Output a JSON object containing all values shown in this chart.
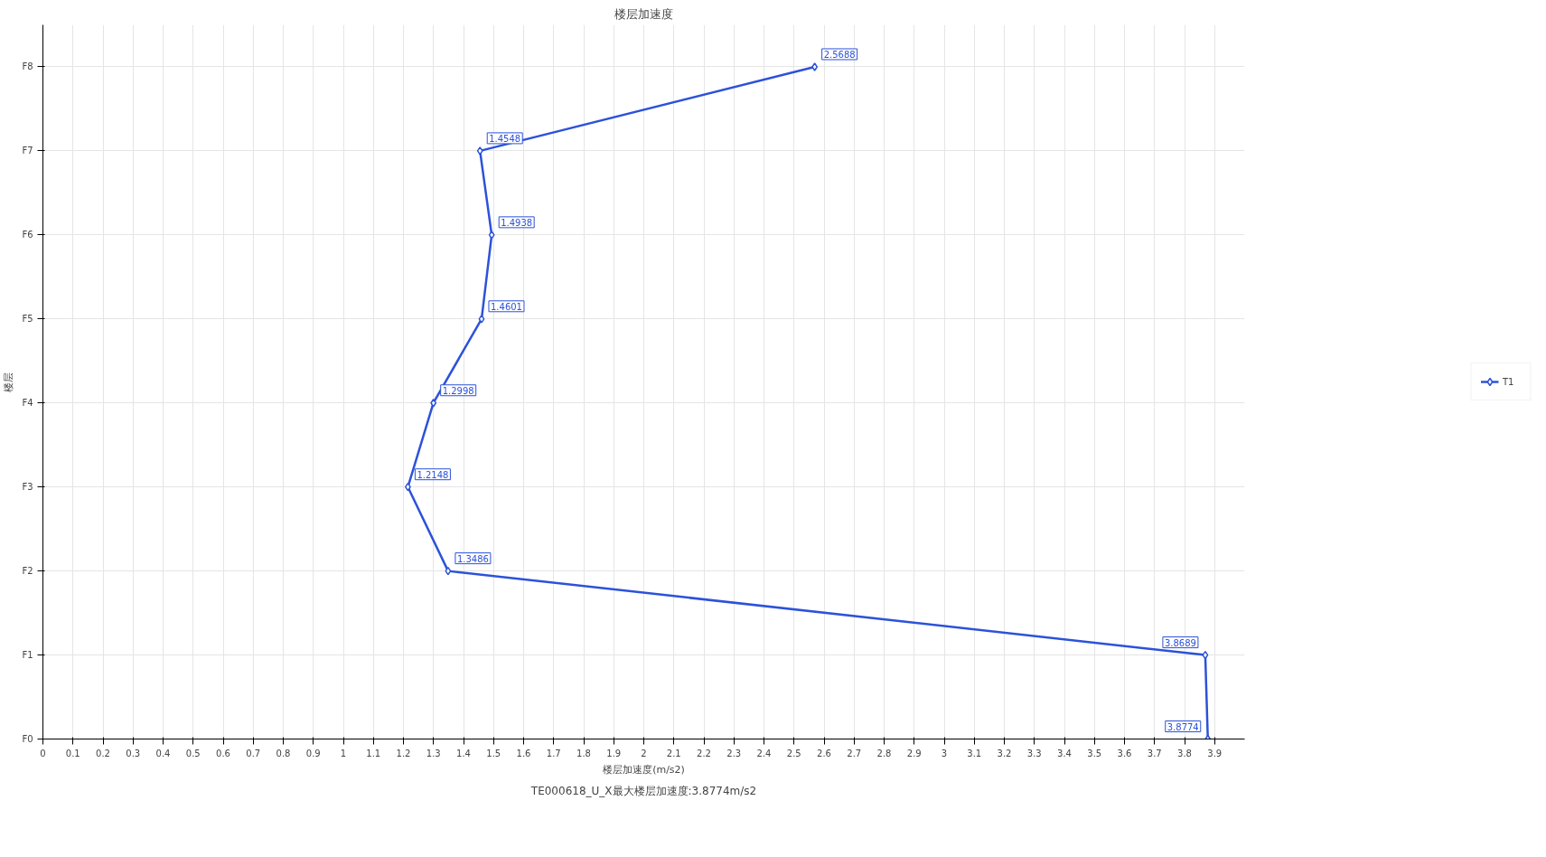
{
  "chart_data": {
    "type": "line",
    "orientation": "horizontal",
    "title": "楼层加速度",
    "xlabel": "楼层加速度(m/s2)",
    "ylabel": "楼层",
    "categories": [
      "F8",
      "F7",
      "F6",
      "F5",
      "F4",
      "F3",
      "F2",
      "F1",
      "F0"
    ],
    "series": [
      {
        "name": "T1",
        "color": "#2c52d9",
        "values": [
          2.5688,
          1.4548,
          1.4938,
          1.4601,
          1.2998,
          1.2148,
          1.3486,
          3.8689,
          3.8774
        ]
      }
    ],
    "xlim": [
      0,
      4
    ],
    "xticks": [
      0,
      0.1,
      0.2,
      0.3,
      0.4,
      0.5,
      0.6,
      0.7,
      0.8,
      0.9,
      1,
      1.1,
      1.2,
      1.3,
      1.4,
      1.5,
      1.6,
      1.7,
      1.8,
      1.9,
      2,
      2.1,
      2.2,
      2.3,
      2.4,
      2.5,
      2.6,
      2.7,
      2.8,
      2.9,
      3,
      3.1,
      3.2,
      3.3,
      3.4,
      3.5,
      3.6,
      3.7,
      3.8,
      3.9
    ],
    "grid": true,
    "legend": "right",
    "marker": "diamond",
    "line_style": "solid",
    "data_labels": true,
    "annotations": [
      "TE000618_U_X最大楼层加速度:3.8774m/s2"
    ]
  }
}
